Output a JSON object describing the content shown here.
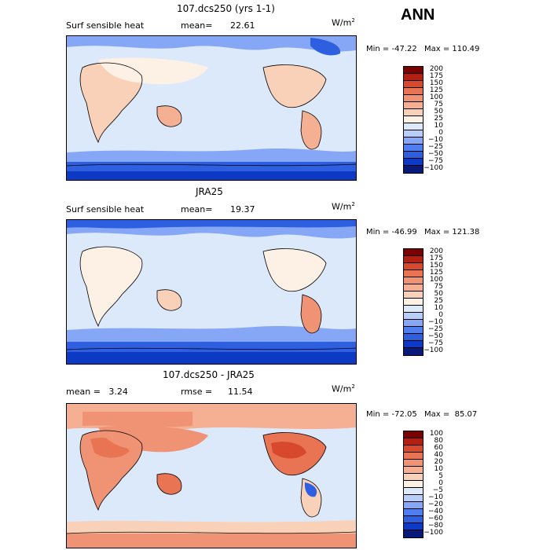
{
  "season": "ANN",
  "units_base": "W/m",
  "units_exp": "2",
  "palette_main": [
    "#0a1a7a",
    "#0d3ac4",
    "#2e5fe0",
    "#4f7ef0",
    "#86a7f5",
    "#b8cdf8",
    "#dce9fb",
    "#fdf1e6",
    "#f9d0b8",
    "#f5b094",
    "#f09374",
    "#e87454",
    "#d7482c",
    "#b12012",
    "#7b0000"
  ],
  "palette_diff": [
    "#0a1a7a",
    "#0d3ac4",
    "#2e5fe0",
    "#4f7ef0",
    "#86a7f5",
    "#b8cdf8",
    "#dce9fb",
    "#fdf1e6",
    "#f9d0b8",
    "#f5b094",
    "#f09374",
    "#e87454",
    "#d7482c",
    "#b12012",
    "#7b0000"
  ],
  "panels": [
    {
      "title": "107.dcs250 (yrs 1-1)",
      "left_label": "Surf sensible heat",
      "stat_label": "mean=",
      "stat_value": "22.61",
      "min_text": "Min = -47.22",
      "max_text": "Max = 110.49",
      "levels": [
        "200",
        "175",
        "150",
        "125",
        "100",
        "75",
        "50",
        "25",
        "10",
        "0",
        "−10",
        "−25",
        "−50",
        "−75",
        "−100"
      ],
      "palette": "main"
    },
    {
      "title": "JRA25",
      "left_label": "Surf sensible heat",
      "stat_label": "mean=",
      "stat_value": "19.37",
      "min_text": "Min = -46.99",
      "max_text": "Max = 121.38",
      "levels": [
        "200",
        "175",
        "150",
        "125",
        "100",
        "75",
        "50",
        "25",
        "10",
        "0",
        "−10",
        "−25",
        "−50",
        "−75",
        "−100"
      ],
      "palette": "main"
    },
    {
      "title": "107.dcs250 - JRA25",
      "left_label": "mean =   3.24",
      "stat_label": "rmse =",
      "stat_value": "11.54",
      "min_text": "Min = -72.05",
      "max_text": "Max =  85.07",
      "levels": [
        "100",
        "80",
        "60",
        "40",
        "20",
        "10",
        "5",
        "0",
        "−5",
        "−10",
        "−20",
        "−40",
        "−60",
        "−80",
        "−100"
      ],
      "palette": "diff"
    }
  ]
}
